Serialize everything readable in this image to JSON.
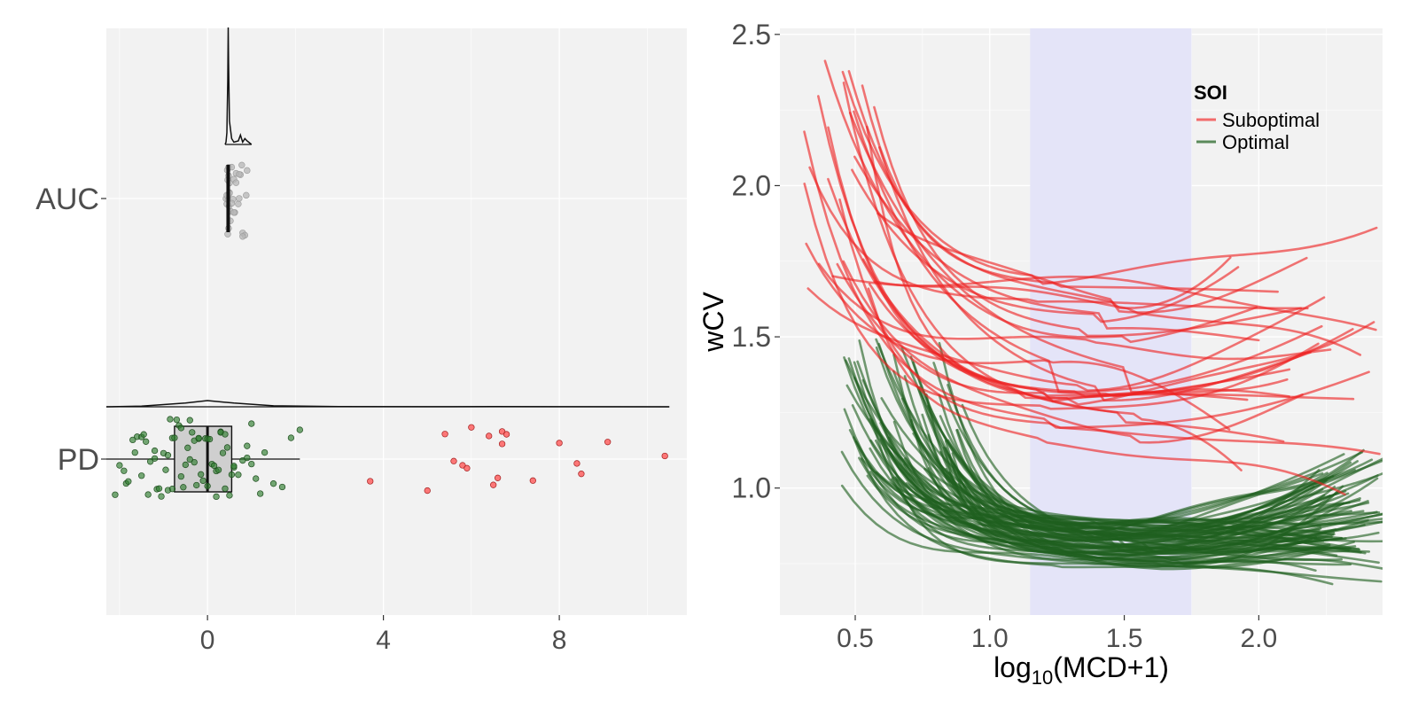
{
  "chart_data": [
    {
      "type": "raincloud",
      "title": "",
      "xlabel": "",
      "ylabel": "",
      "xlim": [
        -2.3,
        10.9
      ],
      "x_ticks": [
        "0",
        "4",
        "8"
      ],
      "x_tick_values": [
        0,
        4,
        8
      ],
      "categories": [
        "AUC",
        "PD"
      ],
      "colors": {
        "optimal_point": "#2e7d2e",
        "suboptimal_point": "#ff4d4d",
        "auc_point": "#b5b5b5",
        "box_fill": "#cfcfcf"
      },
      "series": [
        {
          "category": "AUC",
          "box": {
            "q1": 0.45,
            "median": 0.48,
            "q3": 0.52,
            "whisker_low": 0.42,
            "whisker_high": 0.56
          },
          "density": [
            [
              0.4,
              0.0
            ],
            [
              0.42,
              0.02
            ],
            [
              0.44,
              0.1
            ],
            [
              0.46,
              0.55
            ],
            [
              0.47,
              1.0
            ],
            [
              0.48,
              0.7
            ],
            [
              0.5,
              0.2
            ],
            [
              0.55,
              0.05
            ],
            [
              0.6,
              0.02
            ],
            [
              0.7,
              0.03
            ],
            [
              0.75,
              0.08
            ],
            [
              0.8,
              0.02
            ],
            [
              0.85,
              0.05
            ],
            [
              0.9,
              0.03
            ],
            [
              1.0,
              0.0
            ]
          ],
          "points": [
            0.42,
            0.44,
            0.45,
            0.46,
            0.47,
            0.47,
            0.48,
            0.48,
            0.49,
            0.5,
            0.5,
            0.52,
            0.53,
            0.55,
            0.58,
            0.6,
            0.62,
            0.65,
            0.7,
            0.72,
            0.75,
            0.78,
            0.8,
            0.85,
            0.9,
            0.44,
            0.46,
            0.48,
            0.5,
            0.55,
            0.6,
            0.65,
            0.72,
            0.8,
            0.88
          ]
        },
        {
          "category": "PD",
          "box": {
            "q1": -0.75,
            "median": 0.0,
            "q3": 0.55,
            "whisker_low": -2.3,
            "whisker_high": 2.1
          },
          "density": [
            [
              -2.3,
              0.0
            ],
            [
              -1.5,
              0.1
            ],
            [
              -0.5,
              0.6
            ],
            [
              0.0,
              1.0
            ],
            [
              0.6,
              0.6
            ],
            [
              1.5,
              0.15
            ],
            [
              3.0,
              0.03
            ],
            [
              5.0,
              0.02
            ],
            [
              6.5,
              0.04
            ],
            [
              8.0,
              0.02
            ],
            [
              10.5,
              0.0
            ]
          ],
          "points_optimal": [
            -2.1,
            -2.0,
            -1.9,
            -1.85,
            -1.8,
            -1.7,
            -1.65,
            -1.6,
            -1.5,
            -1.45,
            -1.4,
            -1.35,
            -1.3,
            -1.2,
            -1.15,
            -1.1,
            -1.05,
            -1.0,
            -0.95,
            -0.9,
            -0.85,
            -0.8,
            -0.75,
            -0.7,
            -0.65,
            -0.6,
            -0.55,
            -0.5,
            -0.45,
            -0.4,
            -0.35,
            -0.3,
            -0.25,
            -0.2,
            -0.15,
            -0.1,
            -0.05,
            0.0,
            0.05,
            0.1,
            0.15,
            0.2,
            0.25,
            0.3,
            0.35,
            0.4,
            0.45,
            0.5,
            0.55,
            0.6,
            0.7,
            0.8,
            0.9,
            1.0,
            1.1,
            1.2,
            1.3,
            1.5,
            1.7,
            1.9,
            2.1,
            -1.2,
            -0.9,
            -0.6,
            -0.3,
            0.0,
            0.3,
            0.6,
            0.9,
            -1.5,
            -0.8,
            -0.2,
            0.4,
            1.0,
            -0.4,
            0.2
          ],
          "points_suboptimal": [
            3.7,
            5.0,
            5.4,
            5.6,
            5.8,
            5.9,
            6.0,
            6.4,
            6.5,
            6.6,
            6.7,
            6.7,
            6.8,
            7.4,
            8.0,
            8.4,
            8.5,
            9.1,
            10.4
          ]
        }
      ]
    },
    {
      "type": "line",
      "title": "",
      "xlabel": "log10(MCD+1)",
      "xlabel_main": "log",
      "xlabel_sub": "10",
      "xlabel_rest": "(MCD+1)",
      "ylabel": "wCV",
      "xlim": [
        0.22,
        2.46
      ],
      "ylim": [
        0.58,
        2.52
      ],
      "x_ticks": [
        "0.5",
        "1.0",
        "1.5",
        "2.0"
      ],
      "x_tick_values": [
        0.5,
        1.0,
        1.5,
        2.0
      ],
      "y_ticks": [
        "1.0",
        "1.5",
        "2.0",
        "2.5"
      ],
      "y_tick_values": [
        1.0,
        1.5,
        2.0,
        2.5
      ],
      "shaded_region": [
        1.15,
        1.75
      ],
      "shade_color": "#e3e3f8",
      "legend": {
        "title": "SOI",
        "position": "top-right",
        "entries": [
          {
            "name": "Suboptimal",
            "color": "#f26b6b"
          },
          {
            "name": "Optimal",
            "color": "#5a8a5a"
          }
        ]
      },
      "group_summary": [
        {
          "name": "Suboptimal",
          "count": 30,
          "y_range_at_0.35": [
            1.7,
            2.4
          ],
          "y_range_at_1.3": [
            1.15,
            1.75
          ],
          "y_range_at_2.4": [
            1.05,
            1.85
          ]
        },
        {
          "name": "Optimal",
          "count": 80,
          "y_range_at_0.5": [
            1.0,
            1.5
          ],
          "y_range_at_1.4": [
            0.72,
            1.05
          ],
          "y_range_at_2.4": [
            0.65,
            1.1
          ]
        }
      ]
    }
  ]
}
